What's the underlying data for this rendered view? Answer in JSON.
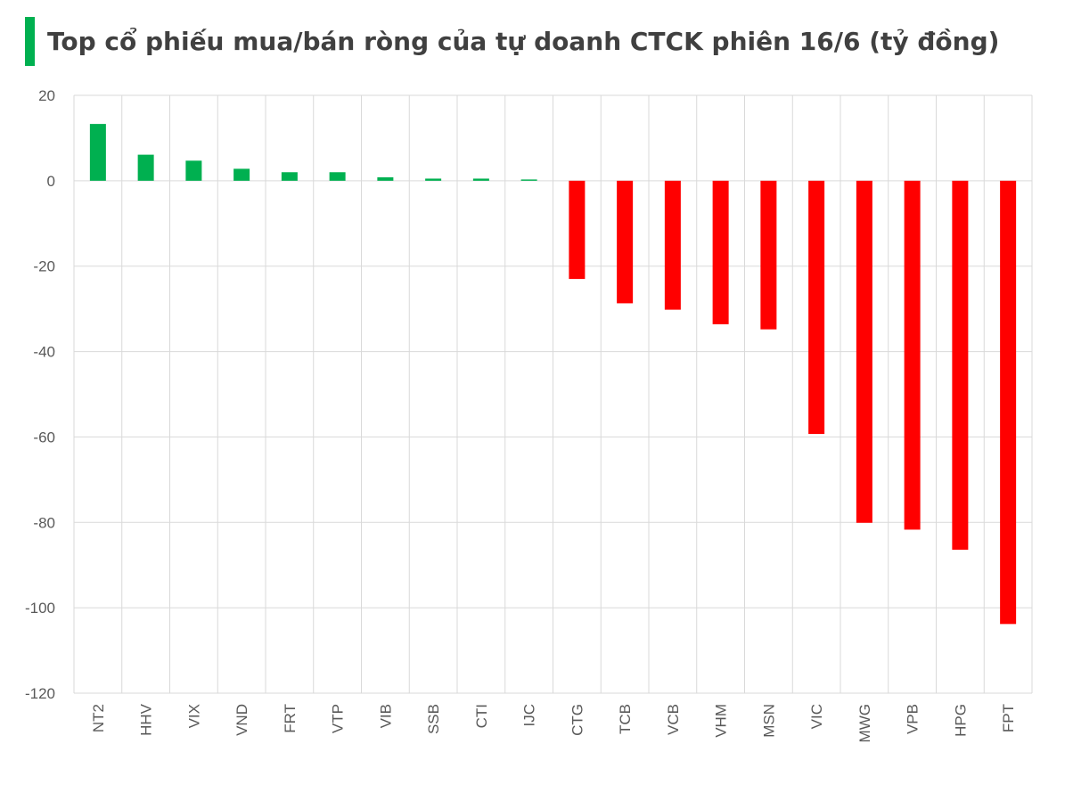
{
  "title": "Top cổ phiếu mua/bán ròng của tự doanh CTCK phiên 16/6 (tỷ đồng)",
  "colors": {
    "accent": "#00b050",
    "positive": "#00b050",
    "negative": "#ff0000",
    "grid": "#d9d9d9"
  },
  "chart_data": {
    "type": "bar",
    "categories": [
      "NT2",
      "HHV",
      "VIX",
      "VND",
      "FRT",
      "VTP",
      "VIB",
      "SSB",
      "CTI",
      "IJC",
      "CTG",
      "TCB",
      "VCB",
      "VHM",
      "MSN",
      "VIC",
      "MWG",
      "VPB",
      "HPG",
      "FPT"
    ],
    "values": [
      13.3,
      6.1,
      4.7,
      2.8,
      2.0,
      2.0,
      0.8,
      0.5,
      0.5,
      0.3,
      -23.0,
      -28.7,
      -30.2,
      -33.6,
      -34.8,
      -59.3,
      -80.1,
      -81.7,
      -86.4,
      -103.8
    ],
    "ylim": [
      -120,
      20
    ],
    "yticks": [
      20,
      0,
      -20,
      -40,
      -60,
      -80,
      -100,
      -120
    ],
    "grid": true,
    "legend": "none"
  }
}
